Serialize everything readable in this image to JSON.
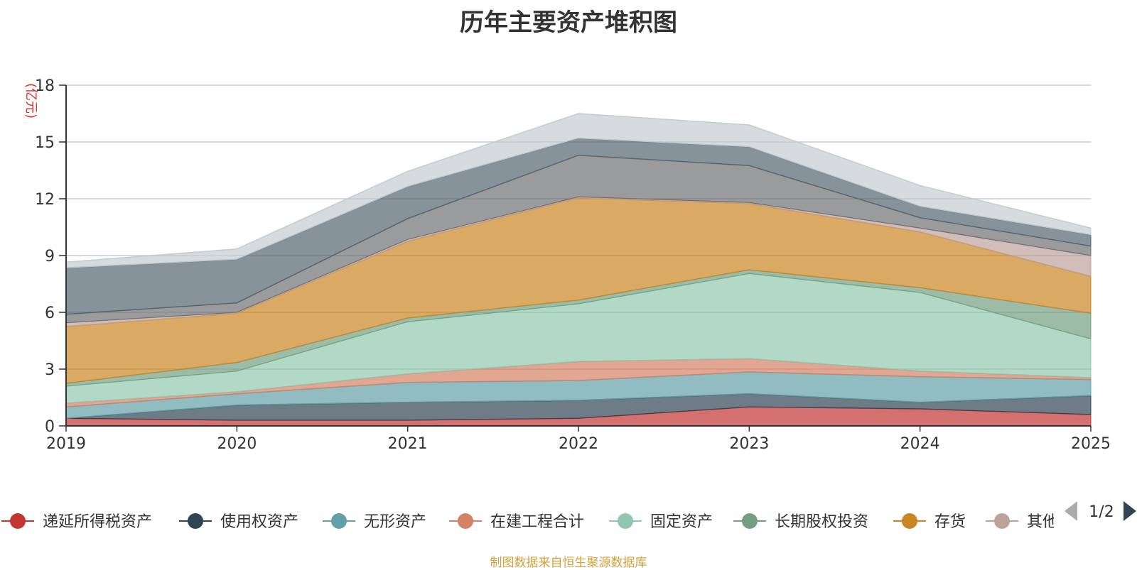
{
  "footer_text": "制图数据来自恒生聚源数据库",
  "legend_page": "1/2",
  "colors": {
    "grid": "#cccccc",
    "axis": "#333333",
    "unit": "#e0312b",
    "nav_active": "#2f4554",
    "nav_inactive": "#aaaaaa"
  },
  "chart_data": {
    "type": "area",
    "stacked": true,
    "title": "历年主要资产堆积图",
    "ylabel": "(亿元)",
    "xlabel": "",
    "ylim": [
      0,
      18
    ],
    "yticks": [
      0,
      3,
      6,
      9,
      12,
      15,
      18
    ],
    "grid": true,
    "legend_position": "bottom",
    "categories": [
      "2019",
      "2020",
      "2021",
      "2022",
      "2023",
      "2024",
      "2025"
    ],
    "series": [
      {
        "name": "递延所得税资产",
        "color": "#c23531",
        "values": [
          0.4,
          0.3,
          0.3,
          0.4,
          1.0,
          0.9,
          0.6
        ]
      },
      {
        "name": "使用权资产",
        "color": "#2f4554",
        "values": [
          0.0,
          0.8,
          0.95,
          0.95,
          0.7,
          0.35,
          1.0
        ]
      },
      {
        "name": "无形资产",
        "color": "#61a0a8",
        "values": [
          0.6,
          0.6,
          1.05,
          1.05,
          1.15,
          1.35,
          0.85
        ]
      },
      {
        "name": "在建工程合计",
        "color": "#d48265",
        "values": [
          0.2,
          0.1,
          0.45,
          1.0,
          0.7,
          0.3,
          0.1
        ]
      },
      {
        "name": "固定资产",
        "color": "#91c7ae",
        "values": [
          0.9,
          1.1,
          2.75,
          3.05,
          4.5,
          4.15,
          2.05
        ]
      },
      {
        "name": "长期股权投资",
        "color": "#749f83",
        "values": [
          0.15,
          0.45,
          0.2,
          0.2,
          0.2,
          0.25,
          1.35
        ]
      },
      {
        "name": "存货",
        "color": "#ca8622",
        "values": [
          3.0,
          2.6,
          4.05,
          5.4,
          3.5,
          2.95,
          1.95
        ]
      },
      {
        "name": "其他",
        "color": "#bda29a",
        "values": [
          0.2,
          0.05,
          0.1,
          0.05,
          0.05,
          0.2,
          1.1
        ]
      },
      {
        "name": "",
        "color": "#6e7074",
        "values": [
          0.45,
          0.5,
          1.1,
          2.2,
          1.95,
          0.55,
          0.5
        ]
      },
      {
        "name": "",
        "color": "#546570",
        "values": [
          2.45,
          2.3,
          1.7,
          0.9,
          1.0,
          0.6,
          0.6
        ]
      },
      {
        "name": "",
        "color": "#c4ccd3",
        "values": [
          0.3,
          0.55,
          0.8,
          1.3,
          1.15,
          1.1,
          0.35
        ]
      }
    ]
  }
}
